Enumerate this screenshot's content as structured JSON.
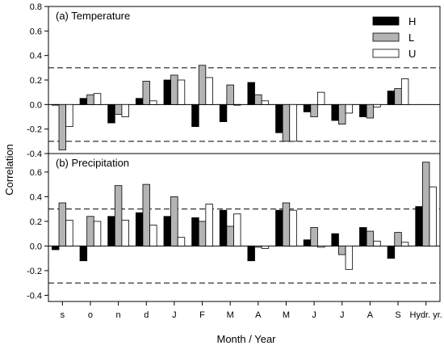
{
  "chart_data": {
    "type": "bar",
    "xlabel": "Month / Year",
    "ylabel": "Correlation",
    "categories": [
      "s",
      "o",
      "n",
      "d",
      "J",
      "F",
      "M",
      "A",
      "M",
      "J",
      "J",
      "A",
      "S",
      "Hydr. yr."
    ],
    "legend": {
      "position": "top-right",
      "entries": [
        {
          "name": "H",
          "color": "#000000"
        },
        {
          "name": "L",
          "color": "#b4b4b4"
        },
        {
          "name": "U",
          "color": "#ffffff"
        }
      ]
    },
    "panels": [
      {
        "title": "(a) Temperature",
        "ylim": [
          -0.4,
          0.8
        ],
        "yticks": [
          "-0.4",
          "-0.2",
          "0.0",
          "0.2",
          "0.4",
          "0.6",
          "0.8"
        ],
        "reference_lines": [
          0.3,
          -0.3
        ],
        "series": [
          {
            "name": "H",
            "values": [
              0.0,
              0.05,
              -0.15,
              0.05,
              0.2,
              -0.18,
              -0.14,
              0.18,
              -0.23,
              -0.06,
              -0.13,
              -0.1,
              0.11,
              null
            ]
          },
          {
            "name": "L",
            "values": [
              -0.37,
              0.08,
              -0.08,
              0.19,
              0.24,
              0.32,
              0.16,
              0.08,
              -0.3,
              -0.1,
              -0.16,
              -0.11,
              0.13,
              null
            ]
          },
          {
            "name": "U",
            "values": [
              -0.18,
              0.09,
              -0.1,
              0.03,
              0.2,
              0.22,
              0.0,
              0.03,
              -0.3,
              0.1,
              -0.07,
              -0.02,
              0.21,
              null
            ]
          }
        ]
      },
      {
        "title": "(b) Precipitation",
        "ylim": [
          -0.45,
          0.75
        ],
        "yticks": [
          "-0.4",
          "-0.2",
          "0.0",
          "0.2",
          "0.4",
          "0.6"
        ],
        "reference_lines": [
          0.3,
          -0.3
        ],
        "series": [
          {
            "name": "H",
            "values": [
              -0.03,
              -0.12,
              0.24,
              0.27,
              0.24,
              0.23,
              0.29,
              -0.12,
              0.29,
              0.05,
              0.1,
              0.15,
              -0.1,
              0.32
            ]
          },
          {
            "name": "L",
            "values": [
              0.35,
              0.24,
              0.49,
              0.5,
              0.4,
              0.2,
              0.16,
              -0.01,
              0.35,
              0.15,
              -0.07,
              0.12,
              0.11,
              0.68
            ]
          },
          {
            "name": "U",
            "values": [
              0.21,
              0.2,
              0.21,
              0.17,
              0.07,
              0.34,
              0.26,
              -0.02,
              0.29,
              -0.01,
              -0.19,
              0.04,
              0.03,
              0.48
            ]
          }
        ]
      }
    ]
  }
}
